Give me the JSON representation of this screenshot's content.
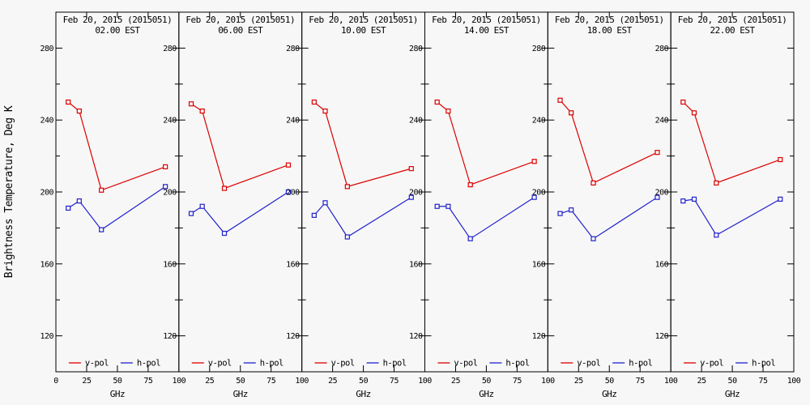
{
  "figure": {
    "ylabel": "Brightness Temperature, Deg K",
    "xlabel": "GHz",
    "background": "#f7f7f7",
    "axis_color": "#000000",
    "text_color": "#000000"
  },
  "colors": {
    "vpol": "#dd0000",
    "hpol": "#2222cc"
  },
  "legend": {
    "vpol_label": "v-pol",
    "hpol_label": "h-pol",
    "position": "bottom-inside"
  },
  "axes": {
    "xlim": [
      0,
      100
    ],
    "ylim": [
      100,
      300
    ],
    "xticks": [
      0,
      25,
      50,
      75,
      100
    ],
    "yticks_major": [
      120,
      160,
      200,
      240,
      280
    ],
    "yticks_minor": [
      140,
      180,
      220,
      260
    ],
    "grid": "off",
    "xlabel": "GHz"
  },
  "chart_data": [
    {
      "type": "line",
      "title": "Feb 20, 2015 (2015051)",
      "subtitle": "02.00 EST",
      "x": [
        10,
        19,
        37,
        89
      ],
      "series": [
        {
          "name": "v-pol",
          "values": [
            250,
            245,
            201,
            214
          ]
        },
        {
          "name": "h-pol",
          "values": [
            191,
            195,
            179,
            203
          ]
        }
      ]
    },
    {
      "type": "line",
      "title": "Feb 20, 2015 (2015051)",
      "subtitle": "06.00 EST",
      "x": [
        10,
        19,
        37,
        89
      ],
      "series": [
        {
          "name": "v-pol",
          "values": [
            249,
            245,
            202,
            215
          ]
        },
        {
          "name": "h-pol",
          "values": [
            188,
            192,
            177,
            200
          ]
        }
      ]
    },
    {
      "type": "line",
      "title": "Feb 20, 2015 (2015051)",
      "subtitle": "10.00 EST",
      "x": [
        10,
        19,
        37,
        89
      ],
      "series": [
        {
          "name": "v-pol",
          "values": [
            250,
            245,
            203,
            213
          ]
        },
        {
          "name": "h-pol",
          "values": [
            187,
            194,
            175,
            197
          ]
        }
      ]
    },
    {
      "type": "line",
      "title": "Feb 20, 2015 (2015051)",
      "subtitle": "14.00 EST",
      "x": [
        10,
        19,
        37,
        89
      ],
      "series": [
        {
          "name": "v-pol",
          "values": [
            250,
            245,
            204,
            217
          ]
        },
        {
          "name": "h-pol",
          "values": [
            192,
            192,
            174,
            197
          ]
        }
      ]
    },
    {
      "type": "line",
      "title": "Feb 20, 2015 (2015051)",
      "subtitle": "18.00 EST",
      "x": [
        10,
        19,
        37,
        89
      ],
      "series": [
        {
          "name": "v-pol",
          "values": [
            251,
            244,
            205,
            222
          ]
        },
        {
          "name": "h-pol",
          "values": [
            188,
            190,
            174,
            197
          ]
        }
      ]
    },
    {
      "type": "line",
      "title": "Feb 20, 2015 (2015051)",
      "subtitle": "22.00 EST",
      "x": [
        10,
        19,
        37,
        89
      ],
      "series": [
        {
          "name": "v-pol",
          "values": [
            250,
            244,
            205,
            218
          ]
        },
        {
          "name": "h-pol",
          "values": [
            195,
            196,
            176,
            196
          ]
        }
      ]
    }
  ]
}
